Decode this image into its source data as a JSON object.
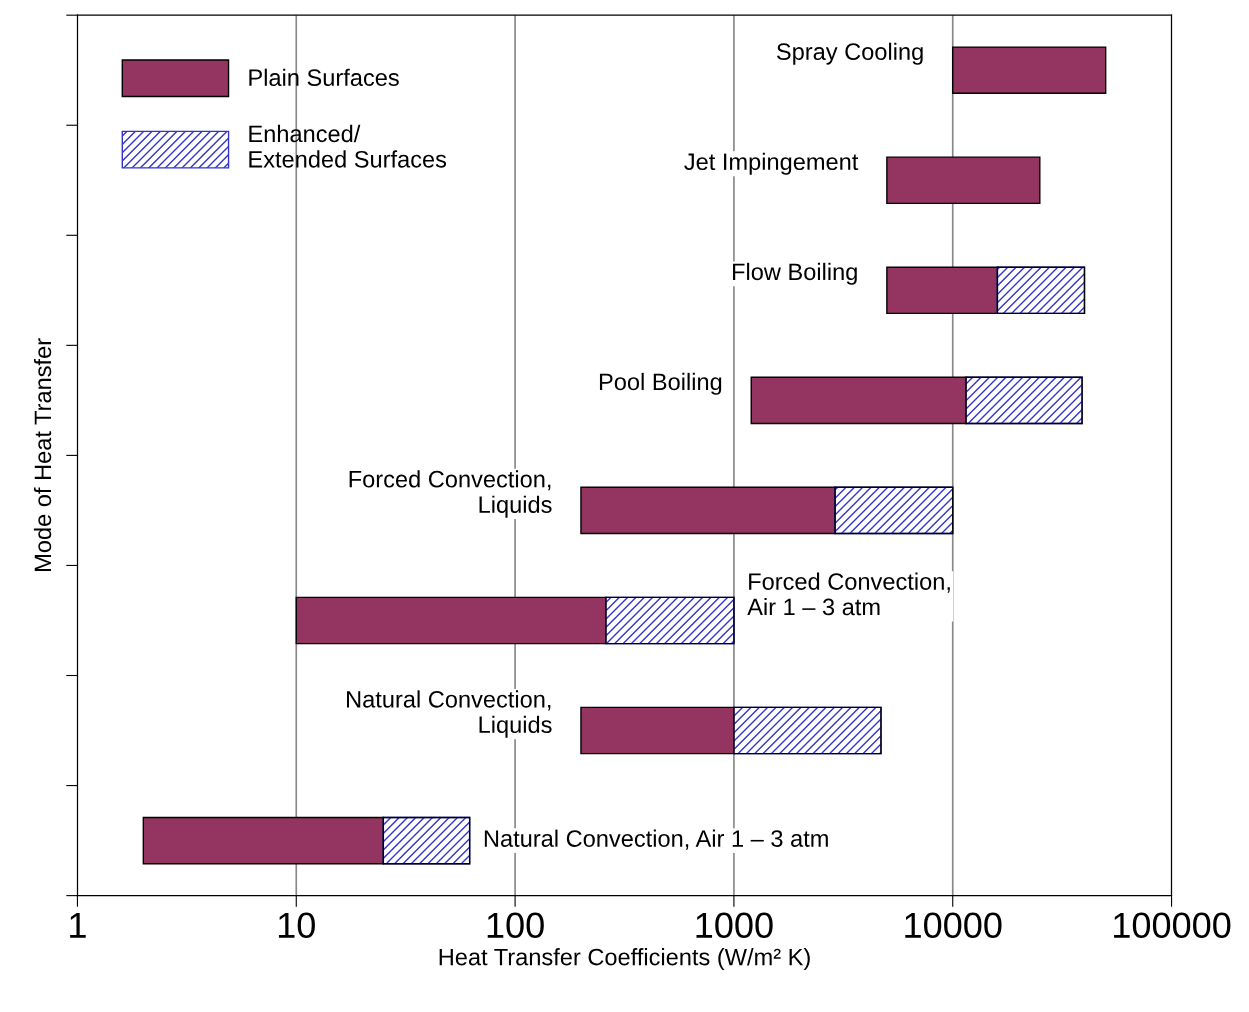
{
  "chart_data": {
    "type": "bar",
    "orientation": "horizontal",
    "log": "x",
    "xlabel": "Heat Transfer Coefficients (W/m² K)",
    "ylabel": "Mode of Heat Transfer",
    "categories": [
      "Spray Cooling",
      "Jet Impingement",
      "Flow Boiling",
      "Pool Boiling",
      "Forced Convection,\nLiquids",
      "Forced Convection,\nAir 1 – 3 atm",
      "Natural Convection,\nLiquids",
      "Natural Convection, Air 1 – 3 atm"
    ],
    "series": [
      {
        "name": "Plain Surfaces",
        "color": "#943460",
        "base": [
          10000,
          5000,
          5000,
          1200,
          200,
          10,
          200,
          2
        ],
        "values": [
          40000,
          20000,
          11000,
          10300,
          2700,
          250,
          800,
          23
        ]
      },
      {
        "name": "Enhanced/\nExtended Surfaces",
        "color": "#3333cc",
        "base": [
          null,
          null,
          16000,
          11500,
          2900,
          260,
          1000,
          25
        ],
        "values": [
          null,
          null,
          24000,
          27500,
          7100,
          740,
          3700,
          37
        ]
      }
    ],
    "xlim": [
      1,
      100000
    ],
    "xticks": [
      1,
      10,
      100,
      1000,
      10000,
      100000
    ],
    "grid": "x",
    "legend": "top left"
  }
}
